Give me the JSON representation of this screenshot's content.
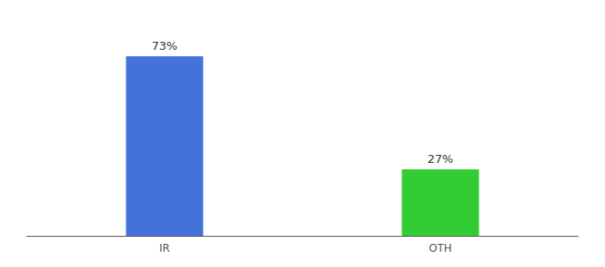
{
  "chart_data": {
    "type": "bar",
    "categories": [
      "IR",
      "OTH"
    ],
    "values": [
      73,
      27
    ],
    "value_labels": [
      "73%",
      "27%"
    ],
    "colors": [
      "#4472db",
      "#33cc33"
    ],
    "ylim": [
      0,
      85
    ],
    "data_labels": true,
    "tick_labels": "x",
    "grid": false
  }
}
